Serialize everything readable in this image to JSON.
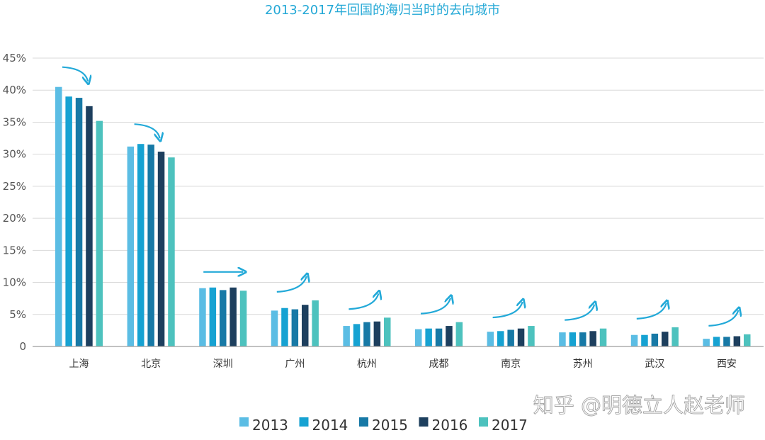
{
  "chart_data": {
    "type": "bar",
    "title": "2013-2017年回国的海归当时的去向城市",
    "xlabel": "",
    "ylabel": "",
    "ylim": [
      0,
      45
    ],
    "yticks": [
      "0",
      "5%",
      "10%",
      "15%",
      "20%",
      "25%",
      "30%",
      "35%",
      "40%",
      "45%"
    ],
    "grid": true,
    "legend_position": "bottom-center",
    "categories": [
      "上海",
      "北京",
      "深圳",
      "广州",
      "杭州",
      "成都",
      "南京",
      "苏州",
      "武汉",
      "西安"
    ],
    "series": [
      {
        "name": "2013",
        "color": "#5bbde4",
        "values": [
          40.5,
          31.2,
          9.1,
          5.6,
          3.2,
          2.7,
          2.3,
          2.2,
          1.8,
          1.2
        ]
      },
      {
        "name": "2014",
        "color": "#16a2d2",
        "values": [
          39.0,
          31.6,
          9.2,
          6.0,
          3.5,
          2.8,
          2.4,
          2.2,
          1.8,
          1.5
        ]
      },
      {
        "name": "2015",
        "color": "#1779a6",
        "values": [
          38.8,
          31.5,
          8.8,
          5.8,
          3.8,
          2.8,
          2.6,
          2.2,
          2.0,
          1.5
        ]
      },
      {
        "name": "2016",
        "color": "#1d3f5e",
        "values": [
          37.5,
          30.4,
          9.2,
          6.5,
          3.9,
          3.2,
          2.8,
          2.4,
          2.3,
          1.6
        ]
      },
      {
        "name": "2017",
        "color": "#4dc2be",
        "values": [
          35.2,
          29.5,
          8.7,
          7.2,
          4.5,
          3.8,
          3.2,
          2.8,
          3.0,
          1.9
        ]
      }
    ],
    "annotations": {
      "arrow_color": "#22a9d8",
      "arrows": [
        "down",
        "down",
        "flat",
        "up",
        "up",
        "up",
        "up",
        "up",
        "up",
        "up"
      ]
    }
  },
  "watermark": "知乎 @明德立人赵老师"
}
